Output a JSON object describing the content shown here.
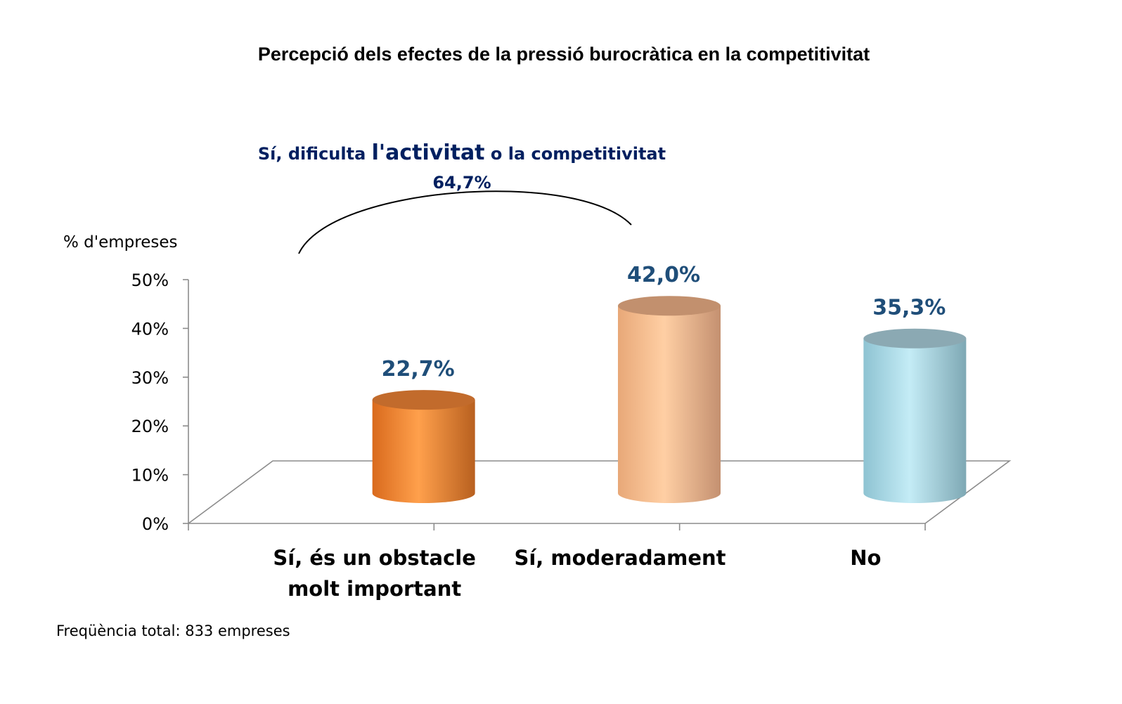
{
  "chart_data": {
    "type": "bar",
    "title": "Percepció dels efectes de la pressió burocràtica en la competitivitat",
    "ylabel": "% d'empreses",
    "xlabel": "",
    "ylim": [
      0,
      50
    ],
    "yticks": [
      "0%",
      "10%",
      "20%",
      "30%",
      "40%",
      "50%"
    ],
    "categories": [
      [
        "Sí, és un obstacle",
        "molt important"
      ],
      [
        "Sí, moderadament"
      ],
      [
        "No"
      ]
    ],
    "values": [
      22.7,
      42.0,
      35.3
    ],
    "value_labels": [
      "22,7%",
      "42,0%",
      "35,3%"
    ],
    "colors": [
      "#f7923a",
      "#f4bc8f",
      "#9fd2e0"
    ],
    "label_color": "#1f4e79",
    "annotation": {
      "text_before": "Sí, dificulta ",
      "text_emph": "l'activitat",
      "text_after": " o la competitivitat",
      "value": "64,7%",
      "color": "#002060"
    },
    "grid": false,
    "footnote": "Freqüència total: 833 empreses"
  }
}
